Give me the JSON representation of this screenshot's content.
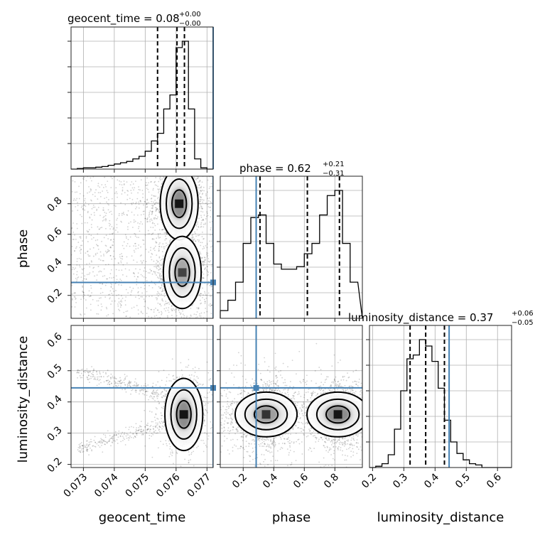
{
  "chart_data": {
    "type": "corner",
    "parameters": [
      "geocent_time",
      "phase",
      "luminosity_distance"
    ],
    "truth_color": "#4682b4",
    "ranges": {
      "geocent_time": [
        0.0726,
        0.0772
      ],
      "phase": [
        0.05,
        0.98
      ],
      "luminosity_distance": [
        0.19,
        0.645
      ]
    },
    "ticks": {
      "geocent_time": [
        "0.073",
        "0.074",
        "0.075",
        "0.076",
        "0.077"
      ],
      "phase": [
        "0.2",
        "0.4",
        "0.6",
        "0.8"
      ],
      "luminosity_distance": [
        "0.2",
        "0.3",
        "0.4",
        "0.5",
        "0.6"
      ]
    },
    "truths": {
      "geocent_time": 0.0772,
      "phase": 0.285,
      "luminosity_distance": 0.445
    },
    "titles": [
      {
        "param": "geocent_time",
        "label": "geocent_time = 0.08",
        "plus": "+0.00",
        "minus": "−0.00"
      },
      {
        "param": "phase",
        "label": "phase = 0.62",
        "plus": "+0.21",
        "minus": "−0.31"
      },
      {
        "param": "luminosity_distance",
        "label": "luminosity_distance = 0.37",
        "plus": "+0.06",
        "minus": "−0.05"
      }
    ],
    "quantiles": {
      "geocent_time": [
        0.0754,
        0.07603,
        0.07627
      ],
      "phase": [
        0.31,
        0.62,
        0.83
      ],
      "luminosity_distance": [
        0.32,
        0.37,
        0.43
      ]
    },
    "histograms": {
      "geocent_time": {
        "edges": [
          0.0726,
          0.0728,
          0.073,
          0.0732,
          0.0734,
          0.0736,
          0.0738,
          0.074,
          0.0742,
          0.0744,
          0.0746,
          0.0748,
          0.075,
          0.0752,
          0.0754,
          0.0756,
          0.0758,
          0.076,
          0.0762,
          0.0764,
          0.0766,
          0.0768,
          0.077,
          0.0772
        ],
        "counts": [
          0,
          0.5,
          1,
          1,
          1.5,
          2,
          3,
          4,
          5,
          6,
          8,
          10,
          14,
          22,
          28,
          47,
          58,
          95,
          100,
          47,
          8,
          1,
          0
        ]
      },
      "phase": {
        "edges": [
          0.05,
          0.1,
          0.15,
          0.2,
          0.25,
          0.3,
          0.35,
          0.4,
          0.45,
          0.5,
          0.55,
          0.6,
          0.65,
          0.7,
          0.75,
          0.8,
          0.85,
          0.9,
          0.95
        ],
        "counts": [
          6,
          14,
          28,
          58,
          78,
          80,
          58,
          42,
          38,
          38,
          40,
          50,
          58,
          80,
          95,
          99,
          58,
          28
        ]
      },
      "luminosity_distance": {
        "edges": [
          0.19,
          0.21,
          0.23,
          0.25,
          0.27,
          0.29,
          0.31,
          0.33,
          0.35,
          0.37,
          0.39,
          0.41,
          0.43,
          0.45,
          0.47,
          0.49,
          0.51,
          0.53,
          0.55,
          0.57
        ],
        "counts": [
          0,
          1,
          3,
          10,
          30,
          60,
          85,
          88,
          100,
          95,
          83,
          62,
          37,
          20,
          11,
          6,
          3,
          2,
          0
        ]
      }
    },
    "joint_2d": [
      {
        "x": "geocent_time",
        "y": "phase",
        "peaks": [
          {
            "x": 0.0761,
            "y": 0.8,
            "level": 1.0
          },
          {
            "x": 0.0762,
            "y": 0.35,
            "level": 0.7
          }
        ]
      },
      {
        "x": "geocent_time",
        "y": "luminosity_distance",
        "peaks": [
          {
            "x": 0.07625,
            "y": 0.36,
            "level": 1.0
          }
        ]
      },
      {
        "x": "phase",
        "y": "luminosity_distance",
        "peaks": [
          {
            "x": 0.35,
            "y": 0.36,
            "level": 0.8
          },
          {
            "x": 0.82,
            "y": 0.36,
            "level": 1.0
          }
        ]
      }
    ]
  }
}
